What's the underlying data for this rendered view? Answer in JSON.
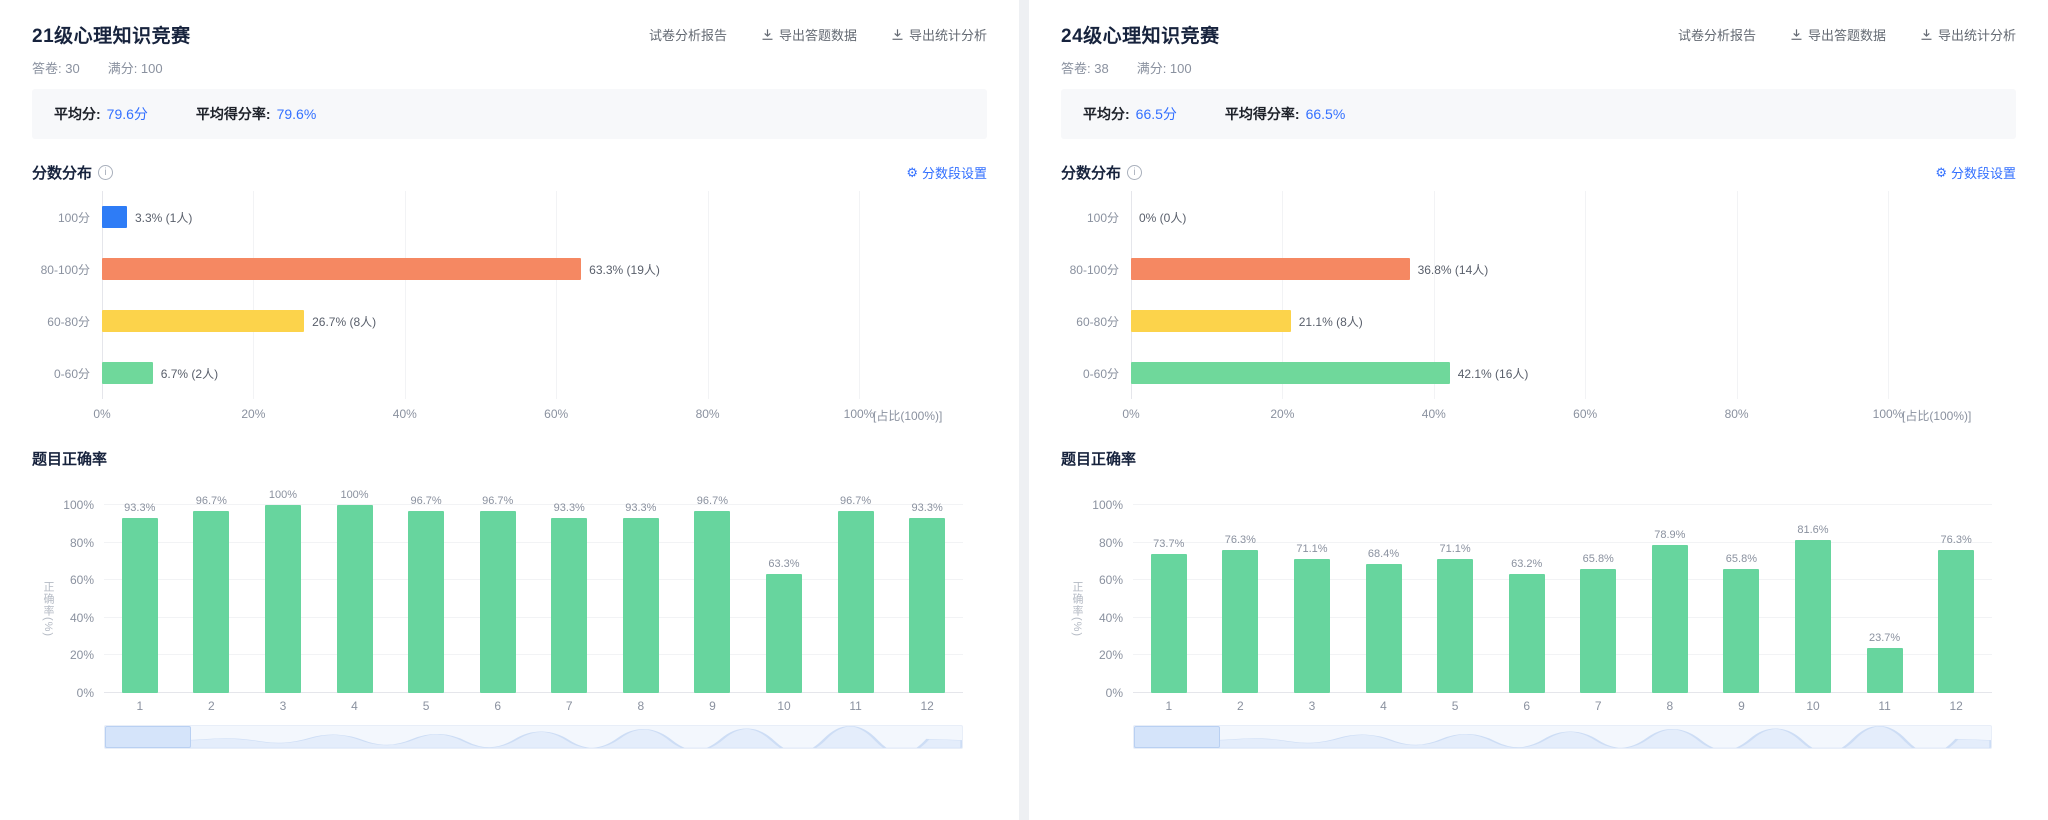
{
  "actions": {
    "report": "试卷分析报告",
    "export_answers": "导出答题数据",
    "export_stats": "导出统计分析"
  },
  "sections": {
    "distribution": "分数分布",
    "distribution_info": "i",
    "settings": "分数段设置",
    "accuracy": "题目正确率"
  },
  "summary_labels": {
    "avg": "平均分:",
    "rate": "平均得分率:"
  },
  "panels": {
    "left": {
      "title": "21级心理知识竞赛",
      "meta": {
        "answers": "答卷: 30",
        "fullscore": "满分: 100"
      },
      "summary": {
        "avg": "79.6分",
        "rate": "79.6%"
      }
    },
    "right": {
      "title": "24级心理知识竞赛",
      "meta": {
        "answers": "答卷: 38",
        "fullscore": "满分: 100"
      },
      "summary": {
        "avg": "66.5分",
        "rate": "66.5%"
      }
    }
  },
  "colors": {
    "accent_blue": "#3370ff",
    "bar_blue": "#2e7cf6",
    "bar_orange": "#f58862",
    "bar_yellow": "#fcd34b",
    "bar_green": "#6fd89b",
    "bar_green_col": "#67d59e",
    "grid": "#f2f3f5",
    "text_gray": "#8a919f"
  },
  "chart_data": [
    {
      "id": "left-score-distribution",
      "type": "bar",
      "orientation": "horizontal",
      "title": "分数分布",
      "categories": [
        "100分",
        "80-100分",
        "60-80分",
        "0-60分"
      ],
      "values": [
        3.3,
        63.3,
        26.7,
        6.7
      ],
      "labels": [
        "3.3% (1人)",
        "63.3% (19人)",
        "26.7% (8人)",
        "6.7% (2人)"
      ],
      "bar_colors": [
        "#2e7cf6",
        "#f58862",
        "#fcd34b",
        "#6fd89b"
      ],
      "xlim": [
        0,
        100
      ],
      "x_ticks": [
        "0%",
        "20%",
        "40%",
        "60%",
        "80%",
        "100%"
      ],
      "axis_note": "[占比(100%)]",
      "grid": true,
      "legend": "none"
    },
    {
      "id": "left-question-accuracy",
      "type": "bar",
      "orientation": "vertical",
      "title": "题目正确率",
      "categories": [
        "1",
        "2",
        "3",
        "4",
        "5",
        "6",
        "7",
        "8",
        "9",
        "10",
        "11",
        "12"
      ],
      "values": [
        93.3,
        96.7,
        100,
        100,
        96.7,
        96.7,
        93.3,
        93.3,
        96.7,
        63.3,
        96.7,
        93.3
      ],
      "labels": [
        "93.3%",
        "96.7%",
        "100%",
        "100%",
        "96.7%",
        "96.7%",
        "93.3%",
        "93.3%",
        "96.7%",
        "63.3%",
        "96.7%",
        "93.3%"
      ],
      "bar_color": "#67d59e",
      "ylim": [
        0,
        100
      ],
      "y_ticks": [
        "0%",
        "20%",
        "40%",
        "60%",
        "80%",
        "100%"
      ],
      "ylabel": "正确率(%)",
      "grid": true,
      "legend": "none"
    },
    {
      "id": "right-score-distribution",
      "type": "bar",
      "orientation": "horizontal",
      "title": "分数分布",
      "categories": [
        "100分",
        "80-100分",
        "60-80分",
        "0-60分"
      ],
      "values": [
        0,
        36.8,
        21.1,
        42.1
      ],
      "labels": [
        "0% (0人)",
        "36.8% (14人)",
        "21.1% (8人)",
        "42.1% (16人)"
      ],
      "bar_colors": [
        "#2e7cf6",
        "#f58862",
        "#fcd34b",
        "#6fd89b"
      ],
      "xlim": [
        0,
        100
      ],
      "x_ticks": [
        "0%",
        "20%",
        "40%",
        "60%",
        "80%",
        "100%"
      ],
      "axis_note": "[占比(100%)]",
      "grid": true,
      "legend": "none"
    },
    {
      "id": "right-question-accuracy",
      "type": "bar",
      "orientation": "vertical",
      "title": "题目正确率",
      "categories": [
        "1",
        "2",
        "3",
        "4",
        "5",
        "6",
        "7",
        "8",
        "9",
        "10",
        "11",
        "12"
      ],
      "values": [
        73.7,
        76.3,
        71.1,
        68.4,
        71.1,
        63.2,
        65.8,
        78.9,
        65.8,
        81.6,
        23.7,
        76.3
      ],
      "labels": [
        "73.7%",
        "76.3%",
        "71.1%",
        "68.4%",
        "71.1%",
        "63.2%",
        "65.8%",
        "78.9%",
        "65.8%",
        "81.6%",
        "23.7%",
        "76.3%"
      ],
      "bar_color": "#67d59e",
      "ylim": [
        0,
        100
      ],
      "y_ticks": [
        "0%",
        "20%",
        "40%",
        "60%",
        "80%",
        "100%"
      ],
      "ylabel": "正确率(%)",
      "grid": true,
      "legend": "none"
    }
  ]
}
